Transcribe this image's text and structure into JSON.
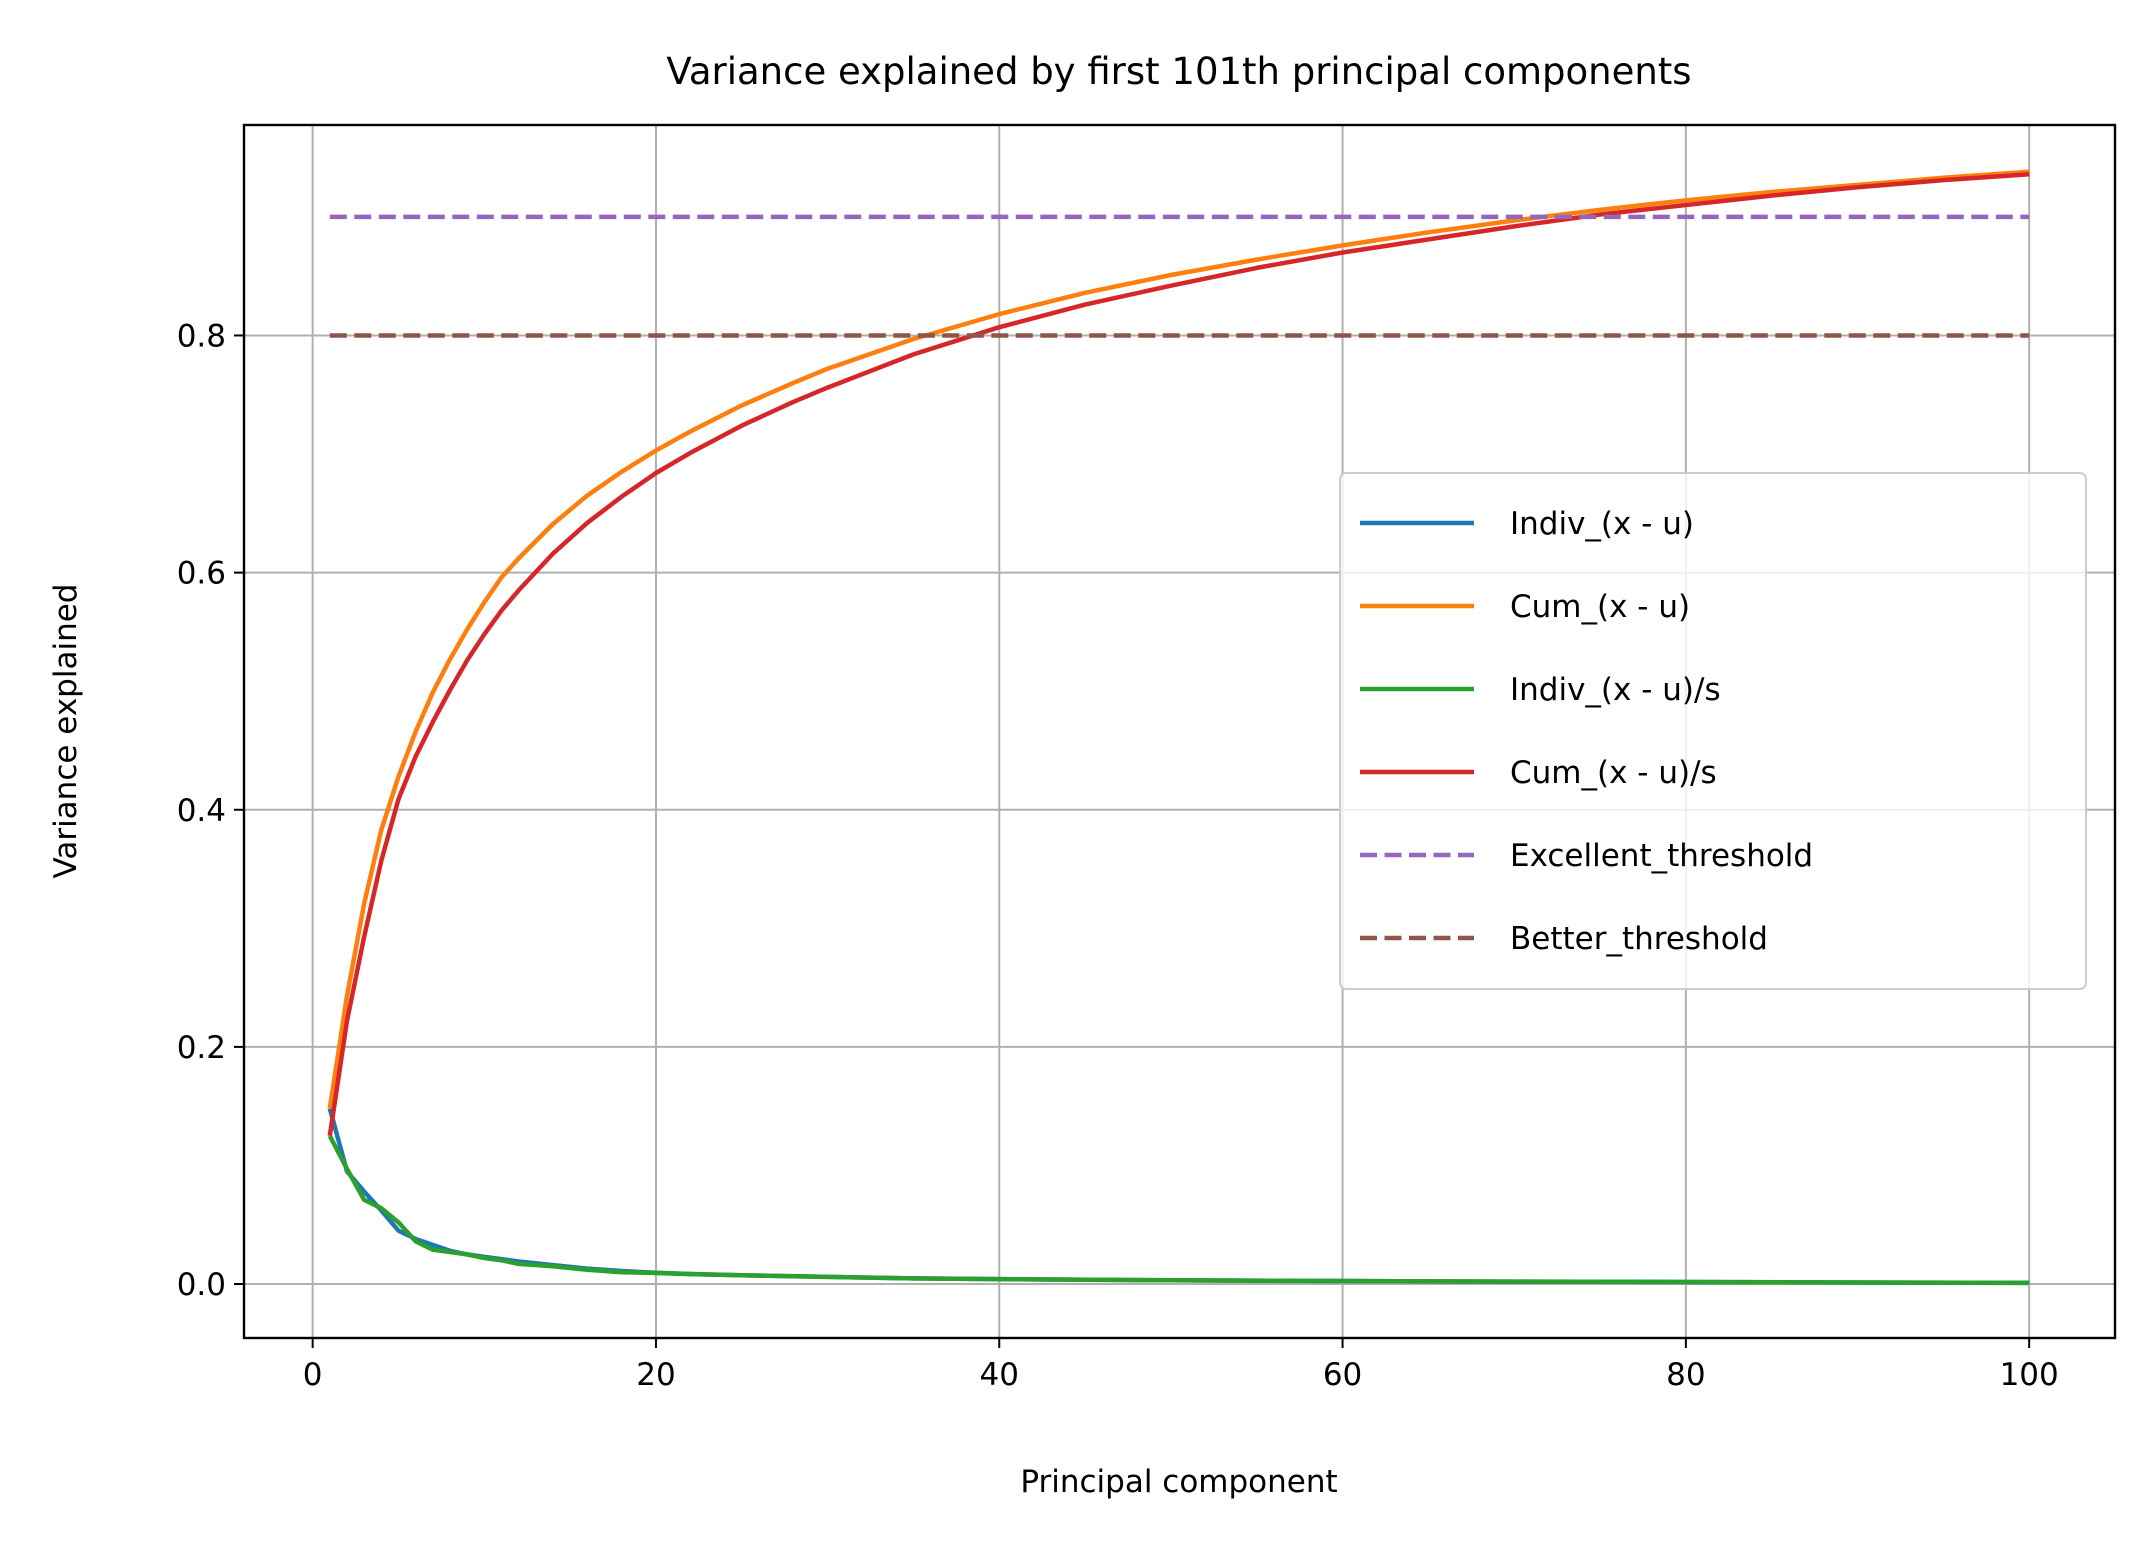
{
  "chart_data": {
    "type": "line",
    "title": "Variance explained by first 101th principal components",
    "xlabel": "Principal component",
    "ylabel": "Variance explained",
    "xlim": [
      -4,
      105
    ],
    "ylim": [
      -0.0455,
      0.9775
    ],
    "x_ticks": [
      0,
      20,
      40,
      60,
      80,
      100
    ],
    "x_tick_labels": [
      "0",
      "20",
      "40",
      "60",
      "80",
      "100"
    ],
    "y_ticks": [
      0.0,
      0.2,
      0.4,
      0.6,
      0.8
    ],
    "y_tick_labels": [
      "0.0",
      "0.2",
      "0.4",
      "0.6",
      "0.8"
    ],
    "grid": true,
    "legend_position": "center-right",
    "series": [
      {
        "name": "Indiv_(x - u)",
        "color": "#1f77b4",
        "style": "solid",
        "points": [
          [
            1,
            0.148
          ],
          [
            2,
            0.095
          ],
          [
            3,
            0.078
          ],
          [
            4,
            0.062
          ],
          [
            5,
            0.045
          ],
          [
            6,
            0.038
          ],
          [
            7,
            0.033
          ],
          [
            8,
            0.028
          ],
          [
            9,
            0.025
          ],
          [
            10,
            0.023
          ],
          [
            11,
            0.021
          ],
          [
            12,
            0.019
          ],
          [
            14,
            0.016
          ],
          [
            16,
            0.013
          ],
          [
            18,
            0.011
          ],
          [
            20,
            0.0095
          ],
          [
            22,
            0.0085
          ],
          [
            25,
            0.0075
          ],
          [
            30,
            0.006
          ],
          [
            35,
            0.0048
          ],
          [
            40,
            0.0042
          ],
          [
            50,
            0.0032
          ],
          [
            60,
            0.0026
          ],
          [
            70,
            0.0021
          ],
          [
            80,
            0.0017
          ],
          [
            90,
            0.0013
          ],
          [
            100,
            0.001
          ]
        ]
      },
      {
        "name": "Cum_(x - u)",
        "color": "#ff7f0e",
        "style": "solid",
        "points": [
          [
            1,
            0.148
          ],
          [
            2,
            0.243
          ],
          [
            3,
            0.321
          ],
          [
            4,
            0.383
          ],
          [
            5,
            0.428
          ],
          [
            6,
            0.466
          ],
          [
            7,
            0.499
          ],
          [
            8,
            0.527
          ],
          [
            9,
            0.552
          ],
          [
            10,
            0.575
          ],
          [
            11,
            0.596
          ],
          [
            12,
            0.612
          ],
          [
            14,
            0.641
          ],
          [
            16,
            0.665
          ],
          [
            18,
            0.685
          ],
          [
            20,
            0.703
          ],
          [
            22,
            0.719
          ],
          [
            25,
            0.741
          ],
          [
            28,
            0.76
          ],
          [
            30,
            0.772
          ],
          [
            35,
            0.797
          ],
          [
            40,
            0.818
          ],
          [
            45,
            0.836
          ],
          [
            50,
            0.851
          ],
          [
            55,
            0.864
          ],
          [
            60,
            0.876
          ],
          [
            65,
            0.887
          ],
          [
            70,
            0.897
          ],
          [
            75,
            0.906
          ],
          [
            80,
            0.914
          ],
          [
            85,
            0.921
          ],
          [
            90,
            0.927
          ],
          [
            95,
            0.933
          ],
          [
            100,
            0.938
          ]
        ]
      },
      {
        "name": "Indiv_(x - u)/s",
        "color": "#2ca02c",
        "style": "solid",
        "points": [
          [
            1,
            0.125
          ],
          [
            2,
            0.097
          ],
          [
            3,
            0.071
          ],
          [
            4,
            0.064
          ],
          [
            5,
            0.052
          ],
          [
            6,
            0.036
          ],
          [
            7,
            0.029
          ],
          [
            8,
            0.027
          ],
          [
            9,
            0.025
          ],
          [
            10,
            0.022
          ],
          [
            11,
            0.02
          ],
          [
            12,
            0.017
          ],
          [
            14,
            0.015
          ],
          [
            16,
            0.012
          ],
          [
            18,
            0.01
          ],
          [
            20,
            0.0093
          ],
          [
            22,
            0.0084
          ],
          [
            25,
            0.0074
          ],
          [
            30,
            0.006
          ],
          [
            35,
            0.0048
          ],
          [
            40,
            0.0042
          ],
          [
            50,
            0.0032
          ],
          [
            60,
            0.0026
          ],
          [
            70,
            0.0021
          ],
          [
            80,
            0.0017
          ],
          [
            90,
            0.0013
          ],
          [
            100,
            0.001
          ]
        ]
      },
      {
        "name": "Cum_(x - u)/s",
        "color": "#d62728",
        "style": "solid",
        "points": [
          [
            1,
            0.125
          ],
          [
            2,
            0.222
          ],
          [
            3,
            0.293
          ],
          [
            4,
            0.357
          ],
          [
            5,
            0.409
          ],
          [
            6,
            0.445
          ],
          [
            7,
            0.474
          ],
          [
            8,
            0.501
          ],
          [
            9,
            0.526
          ],
          [
            10,
            0.548
          ],
          [
            11,
            0.568
          ],
          [
            12,
            0.585
          ],
          [
            14,
            0.616
          ],
          [
            16,
            0.642
          ],
          [
            18,
            0.664
          ],
          [
            20,
            0.684
          ],
          [
            22,
            0.701
          ],
          [
            25,
            0.724
          ],
          [
            28,
            0.744
          ],
          [
            30,
            0.756
          ],
          [
            35,
            0.784
          ],
          [
            40,
            0.807
          ],
          [
            45,
            0.826
          ],
          [
            50,
            0.842
          ],
          [
            55,
            0.857
          ],
          [
            60,
            0.87
          ],
          [
            65,
            0.881
          ],
          [
            70,
            0.892
          ],
          [
            75,
            0.902
          ],
          [
            80,
            0.91
          ],
          [
            85,
            0.918
          ],
          [
            90,
            0.925
          ],
          [
            95,
            0.931
          ],
          [
            100,
            0.936
          ]
        ]
      },
      {
        "name": "Excellent_threshold",
        "color": "#9467bd",
        "style": "dashed",
        "points": [
          [
            1,
            0.9
          ],
          [
            100,
            0.9
          ]
        ]
      },
      {
        "name": "Better_threshold",
        "color": "#8c564b",
        "style": "dashed",
        "points": [
          [
            1,
            0.8
          ],
          [
            100,
            0.8
          ]
        ]
      }
    ]
  }
}
